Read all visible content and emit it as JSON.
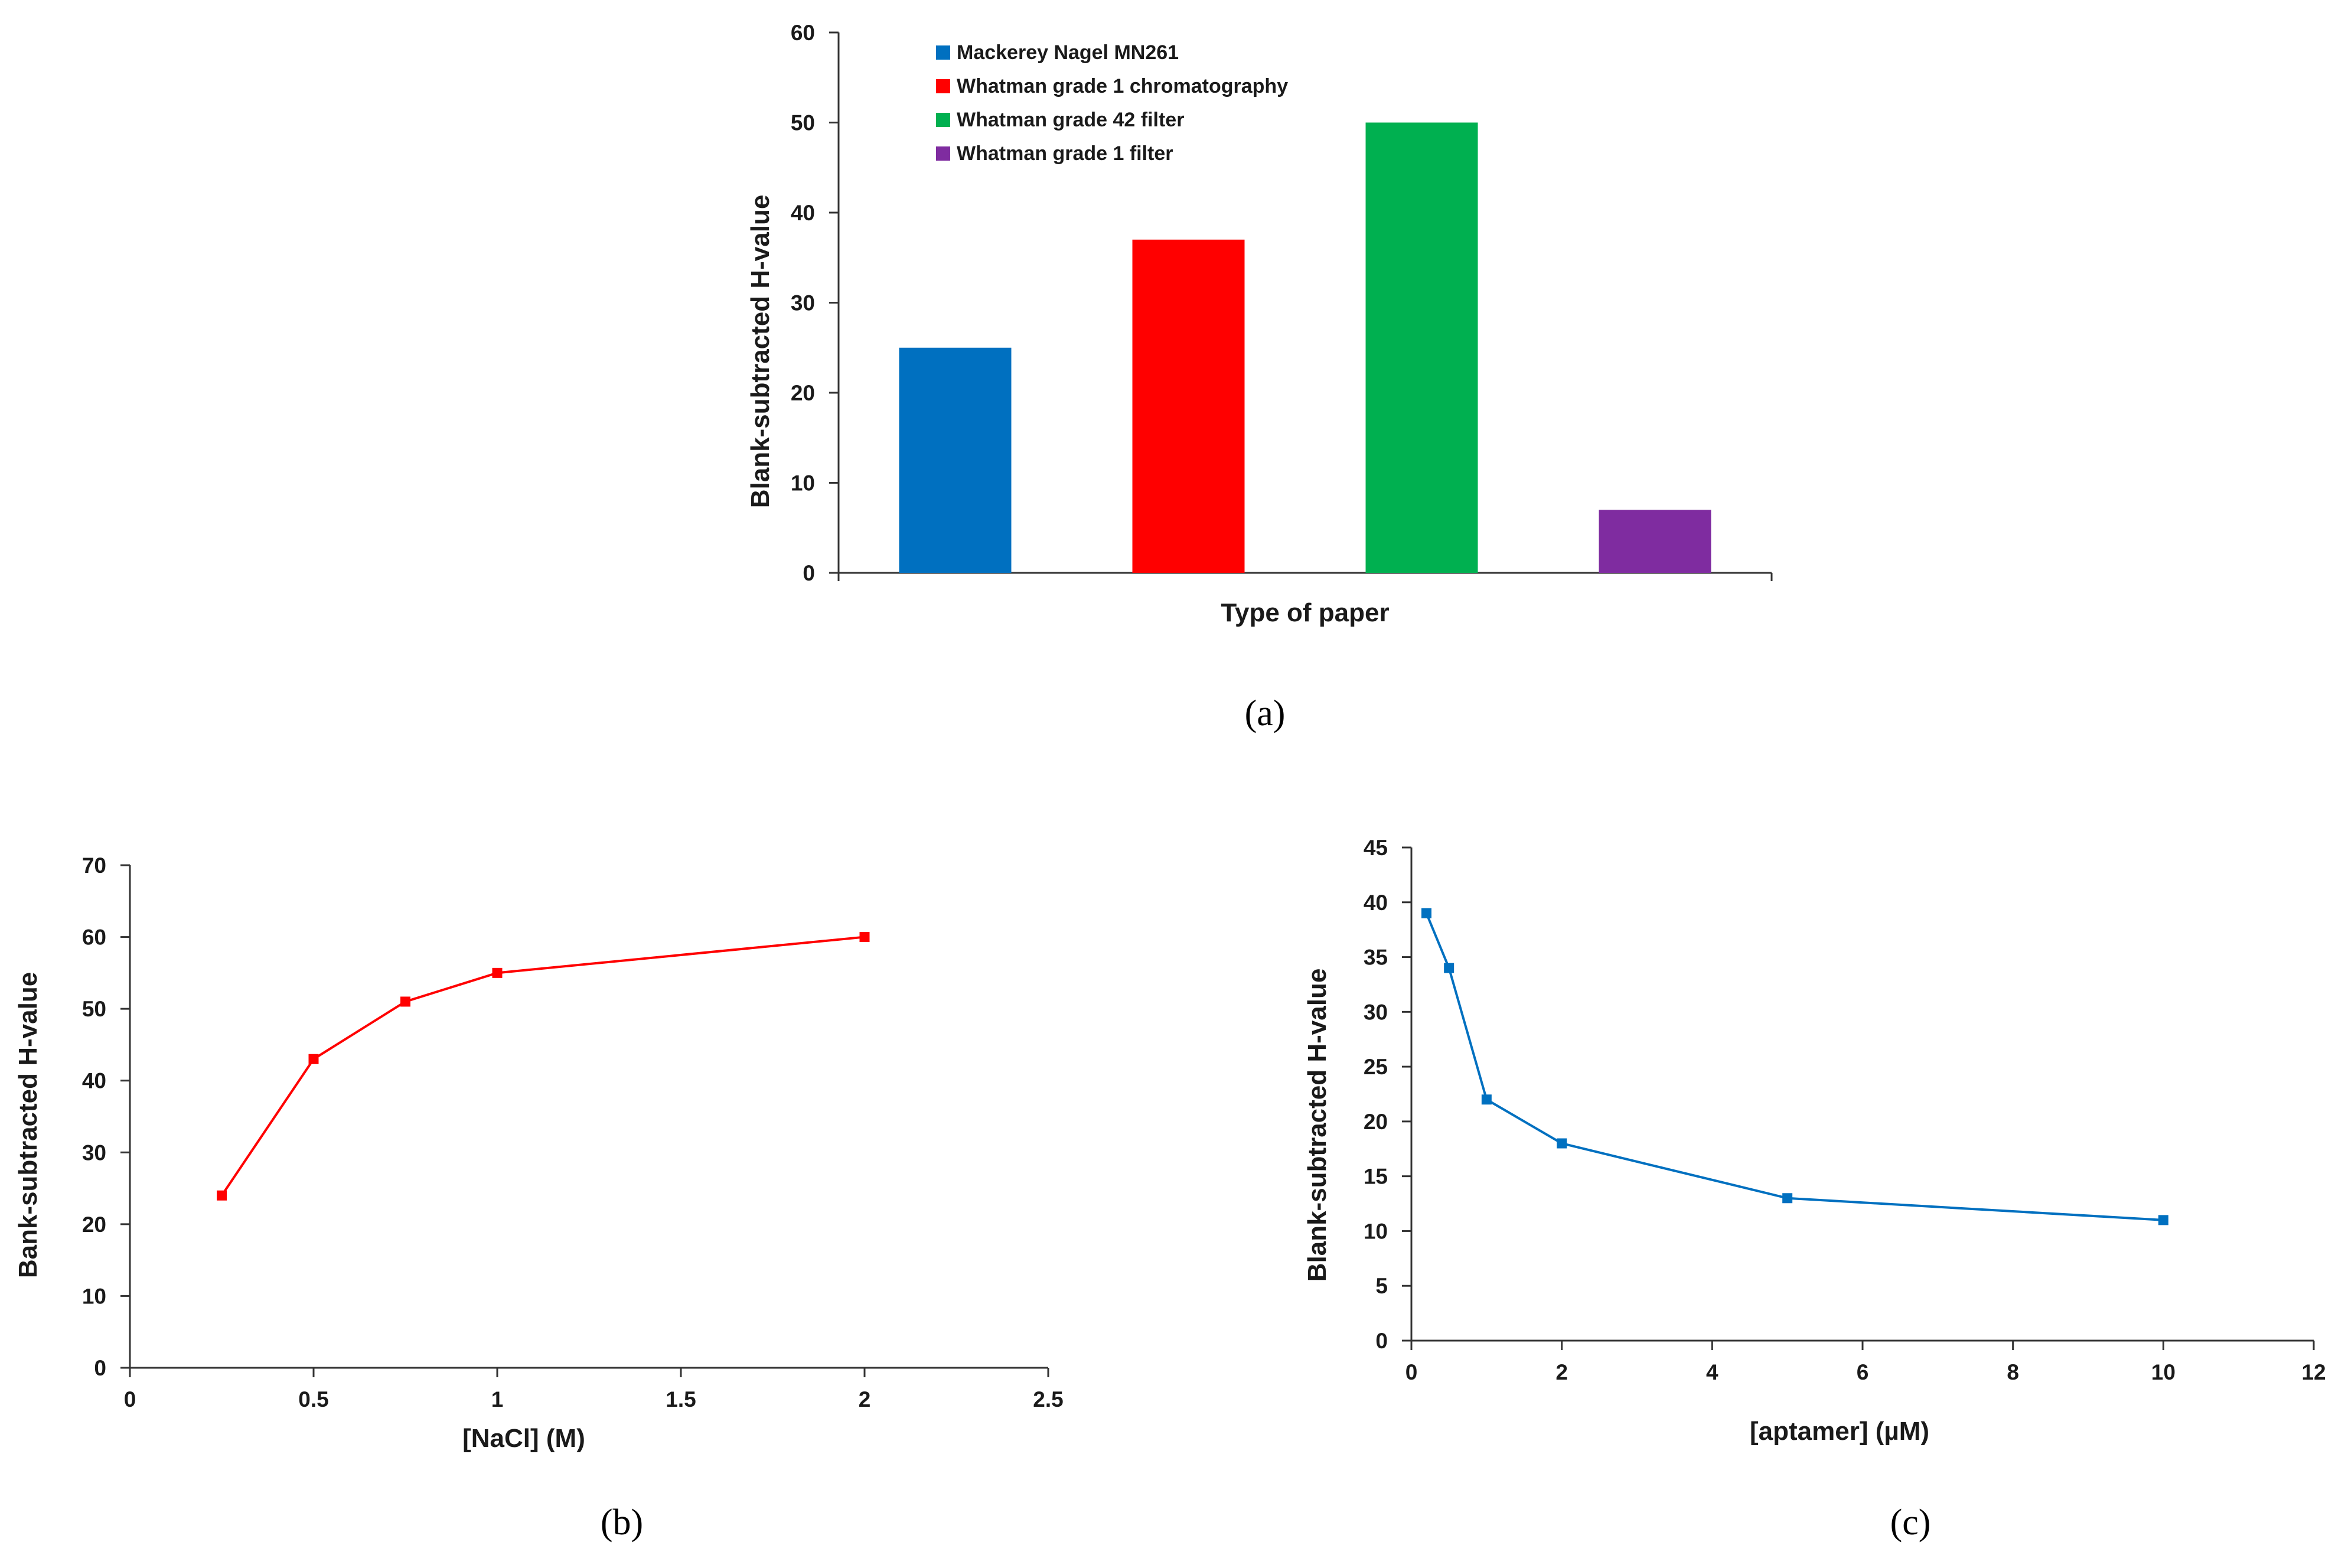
{
  "chart_data": [
    {
      "id": "a",
      "panel_label": "(a)",
      "type": "bar",
      "title": "",
      "xlabel": "Type of paper",
      "ylabel": "Blank-subtracted H-value",
      "ylim": [
        0,
        60
      ],
      "yticks": [
        0,
        10,
        20,
        30,
        40,
        50,
        60
      ],
      "grid": false,
      "legend_position": "top-left",
      "categories": [
        "Mackerey Nagel MN261",
        "Whatman grade 1 chromatography",
        "Whatman grade 42 filter",
        "Whatman grade 1 filter"
      ],
      "values": [
        25,
        37,
        50,
        7
      ],
      "colors": [
        "#0070C0",
        "#FF0000",
        "#00B050",
        "#7F2CA0"
      ]
    },
    {
      "id": "b",
      "panel_label": "(b)",
      "type": "line",
      "title": "",
      "xlabel": "[NaCl] (M)",
      "ylabel": "Bank-subtracted H-value",
      "xlim": [
        0,
        2.5
      ],
      "ylim": [
        0,
        70
      ],
      "xticks": [
        0,
        0.5,
        1,
        1.5,
        2,
        2.5
      ],
      "yticks": [
        0,
        10,
        20,
        30,
        40,
        50,
        60,
        70
      ],
      "grid": false,
      "series": [
        {
          "name": "NaCl",
          "color": "#FF0000",
          "x": [
            0.25,
            0.5,
            0.75,
            1,
            2
          ],
          "y": [
            24,
            43,
            51,
            55,
            60
          ]
        }
      ]
    },
    {
      "id": "c",
      "panel_label": "(c)",
      "type": "line",
      "title": "",
      "xlabel": "[aptamer] (µM)",
      "ylabel": "Blank-subtracted H-value",
      "xlim": [
        0,
        12
      ],
      "ylim": [
        0,
        45
      ],
      "xticks": [
        0,
        2,
        4,
        6,
        8,
        10,
        12
      ],
      "yticks": [
        0,
        5,
        10,
        15,
        20,
        25,
        30,
        35,
        40,
        45
      ],
      "grid": false,
      "series": [
        {
          "name": "aptamer",
          "color": "#0070C0",
          "x": [
            0.2,
            0.5,
            1,
            2,
            5,
            10
          ],
          "y": [
            39,
            34,
            22,
            18,
            13,
            11
          ]
        }
      ]
    }
  ]
}
